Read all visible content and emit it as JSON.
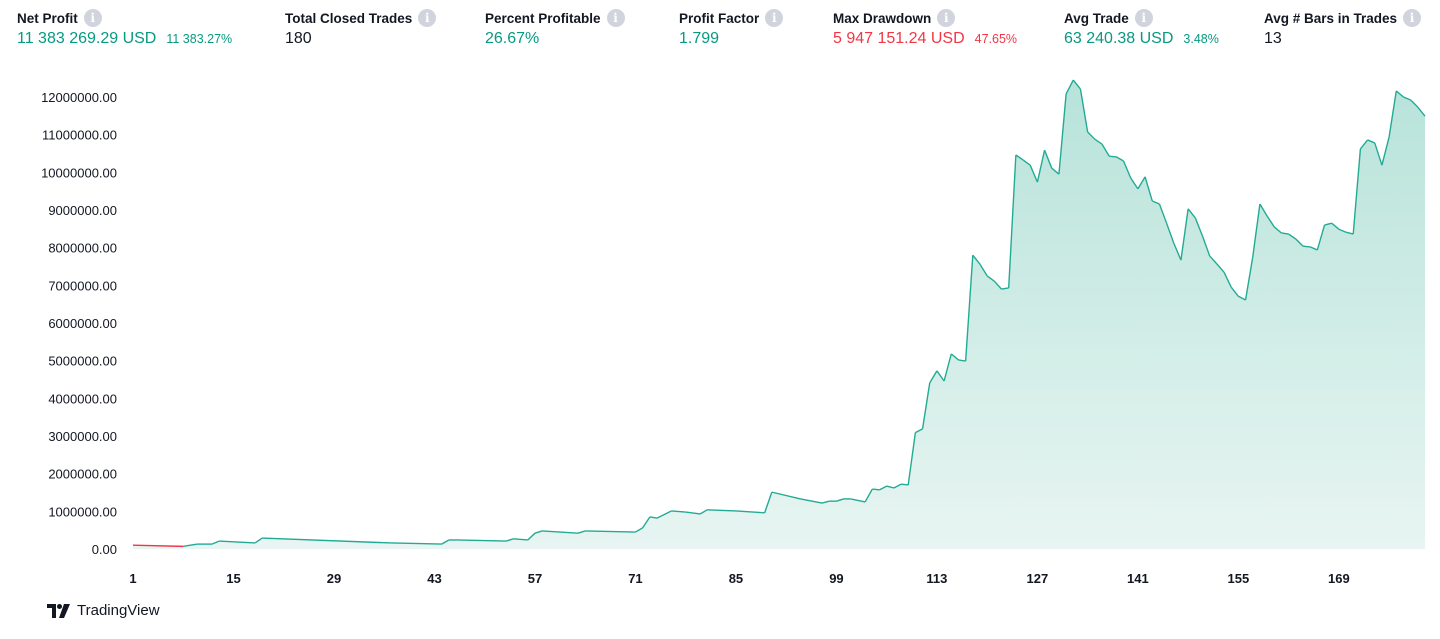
{
  "stats": [
    {
      "title": "Net Profit",
      "value": "11 383 269.29 USD",
      "percent": "11 383.27%",
      "color": "green"
    },
    {
      "title": "Total Closed Trades",
      "value": "180",
      "percent": "",
      "color": "dark"
    },
    {
      "title": "Percent Profitable",
      "value": "26.67%",
      "percent": "",
      "color": "green"
    },
    {
      "title": "Profit Factor",
      "value": "1.799",
      "percent": "",
      "color": "green"
    },
    {
      "title": "Max Drawdown",
      "value": "5 947 151.24 USD",
      "percent": "47.65%",
      "color": "red"
    },
    {
      "title": "Avg Trade",
      "value": "63 240.38 USD",
      "percent": "3.48%",
      "color": "green"
    },
    {
      "title": "Avg # Bars in Trades",
      "value": "13",
      "percent": "",
      "color": "dark"
    }
  ],
  "info_icon": "info-icon",
  "logo": {
    "text": "TradingView"
  },
  "colors": {
    "line": "#22ab94",
    "fill_top": "#b7e3da",
    "fill_bottom": "#e8f5f2",
    "loss": "#f23645",
    "green": "#089981"
  },
  "chart_data": {
    "type": "area",
    "xlabel": "",
    "ylabel": "",
    "xlim": [
      1,
      181
    ],
    "ylim": [
      0,
      12000000
    ],
    "grid": false,
    "x_ticks": [
      "1",
      "15",
      "29",
      "43",
      "57",
      "71",
      "85",
      "99",
      "113",
      "127",
      "141",
      "155",
      "169"
    ],
    "y_ticks": [
      "0.00",
      "1000000.00",
      "2000000.00",
      "3000000.00",
      "4000000.00",
      "5000000.00",
      "6000000.00",
      "7000000.00",
      "8000000.00",
      "9000000.00",
      "10000000.00",
      "11000000.00",
      "12000000.00"
    ],
    "baseline": 100000,
    "x": [
      1,
      8,
      10,
      12,
      13,
      18,
      19,
      37,
      44,
      45,
      46,
      53,
      54,
      56,
      57,
      58,
      63,
      64,
      71,
      72,
      73,
      74,
      76,
      78,
      80,
      81,
      85,
      89,
      90,
      94,
      97,
      98,
      99,
      100,
      101,
      103,
      104,
      105,
      106,
      107,
      108,
      109,
      110,
      111,
      112,
      113,
      114,
      115,
      116,
      117,
      118,
      119,
      120,
      121,
      122,
      123,
      124,
      125,
      126,
      127,
      128,
      129,
      130,
      131,
      132,
      133,
      134,
      135,
      136,
      137,
      138,
      139,
      140,
      141,
      142,
      143,
      144,
      145,
      146,
      147,
      148,
      149,
      150,
      151,
      152,
      153,
      154,
      155,
      156,
      157,
      158,
      159,
      160,
      161,
      162,
      163,
      164,
      165,
      166,
      167,
      168,
      169,
      170,
      171,
      172,
      173,
      174,
      175,
      176,
      177,
      178,
      179,
      180,
      181
    ],
    "y": [
      100000,
      70000,
      130000,
      130000,
      210000,
      160000,
      290000,
      160000,
      130000,
      240000,
      240000,
      210000,
      270000,
      240000,
      420000,
      480000,
      420000,
      480000,
      450000,
      560000,
      850000,
      820000,
      1010000,
      980000,
      930000,
      1040000,
      1010000,
      960000,
      1510000,
      1330000,
      1220000,
      1270000,
      1270000,
      1330000,
      1330000,
      1250000,
      1590000,
      1570000,
      1670000,
      1620000,
      1720000,
      1700000,
      3090000,
      3190000,
      4410000,
      4730000,
      4460000,
      5180000,
      5020000,
      4990000,
      7800000,
      7560000,
      7250000,
      7110000,
      6900000,
      6930000,
      10460000,
      10330000,
      10190000,
      9740000,
      10590000,
      10110000,
      9950000,
      12080000,
      12450000,
      12210000,
      11070000,
      10880000,
      10750000,
      10430000,
      10410000,
      10300000,
      9850000,
      9560000,
      9880000,
      9240000,
      9160000,
      8650000,
      8120000,
      7670000,
      9030000,
      8790000,
      8310000,
      7780000,
      7570000,
      7350000,
      6950000,
      6710000,
      6610000,
      7750000,
      9160000,
      8840000,
      8550000,
      8390000,
      8360000,
      8230000,
      8040000,
      8020000,
      7940000,
      8600000,
      8650000,
      8490000,
      8410000,
      8360000,
      10620000,
      10860000,
      10780000,
      10190000,
      10940000,
      12160000,
      12000000,
      11920000,
      11730000,
      11490000
    ]
  }
}
